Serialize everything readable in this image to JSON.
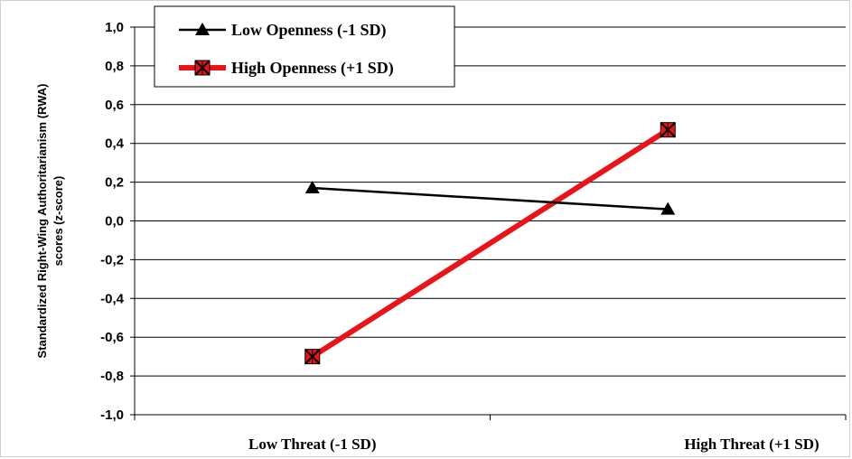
{
  "chart_data": {
    "type": "line",
    "title": "",
    "xlabel": "",
    "ylabel_line1": "Standardized Right-Wing  Authoritarianism (RWA)",
    "ylabel_line2": "scores (z-score)",
    "categories": [
      "Low Threat (-1 SD)",
      "High Threat (+1 SD)"
    ],
    "ylim": [
      -1.0,
      1.0
    ],
    "yticks": [
      -1.0,
      -0.8,
      -0.6,
      -0.4,
      -0.2,
      0.0,
      0.2,
      0.4,
      0.6,
      0.8,
      1.0
    ],
    "ytick_labels": [
      "-1,0",
      "-0,8",
      "-0,6",
      "-0,4",
      "-0,2",
      "0,0",
      "0,2",
      "0,4",
      "0,6",
      "0,8",
      "1,0"
    ],
    "grid": true,
    "legend_position": "top-left",
    "series": [
      {
        "name": "Low Openness (-1 SD)",
        "values": [
          0.17,
          0.06
        ],
        "color": "#000000",
        "marker": "triangle"
      },
      {
        "name": "High Openness (+1 SD)",
        "values": [
          -0.7,
          0.47
        ],
        "color": "#e8141a",
        "marker": "x-square"
      }
    ]
  }
}
